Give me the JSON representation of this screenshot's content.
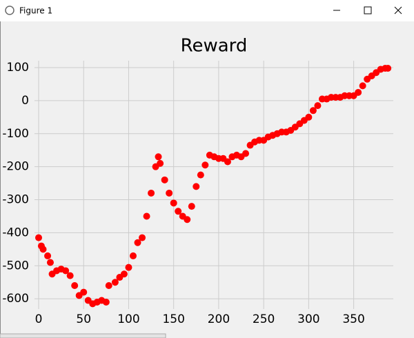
{
  "window": {
    "title": "Figure 1"
  },
  "chart_data": {
    "type": "scatter",
    "title": "Reward",
    "color": "#ff0000",
    "grid": true,
    "x": [
      0,
      3,
      5,
      10,
      13,
      15,
      20,
      25,
      30,
      35,
      40,
      45,
      50,
      55,
      60,
      65,
      70,
      75,
      78,
      85,
      90,
      95,
      100,
      105,
      110,
      115,
      120,
      125,
      130,
      133,
      135,
      140,
      145,
      150,
      155,
      160,
      165,
      170,
      175,
      180,
      185,
      190,
      195,
      200,
      205,
      210,
      215,
      220,
      225,
      230,
      235,
      240,
      245,
      250,
      255,
      260,
      265,
      270,
      275,
      280,
      285,
      290,
      295,
      300,
      305,
      310,
      315,
      320,
      325,
      330,
      335,
      340,
      345,
      350,
      355,
      360,
      365,
      370,
      375,
      380,
      385,
      388
    ],
    "values": [
      -415,
      -440,
      -450,
      -470,
      -490,
      -525,
      -515,
      -510,
      -515,
      -530,
      -560,
      -590,
      -580,
      -605,
      -615,
      -610,
      -605,
      -610,
      -560,
      -550,
      -535,
      -525,
      -505,
      -470,
      -430,
      -415,
      -350,
      -280,
      -200,
      -170,
      -190,
      -240,
      -280,
      -310,
      -335,
      -350,
      -360,
      -320,
      -260,
      -225,
      -195,
      -165,
      -170,
      -175,
      -175,
      -185,
      -170,
      -165,
      -170,
      -160,
      -135,
      -125,
      -120,
      -120,
      -110,
      -105,
      -100,
      -95,
      -95,
      -90,
      -80,
      -70,
      -60,
      -50,
      -30,
      -15,
      5,
      5,
      10,
      10,
      10,
      15,
      15,
      15,
      25,
      45,
      65,
      75,
      85,
      95,
      98,
      98
    ],
    "xlim": [
      -4.6,
      394
    ],
    "ylim": [
      -631,
      121
    ],
    "xticks": [
      0,
      50,
      100,
      150,
      200,
      250,
      300,
      350
    ],
    "yticks": [
      -600,
      -500,
      -400,
      -300,
      -200,
      -100,
      0,
      100
    ]
  }
}
